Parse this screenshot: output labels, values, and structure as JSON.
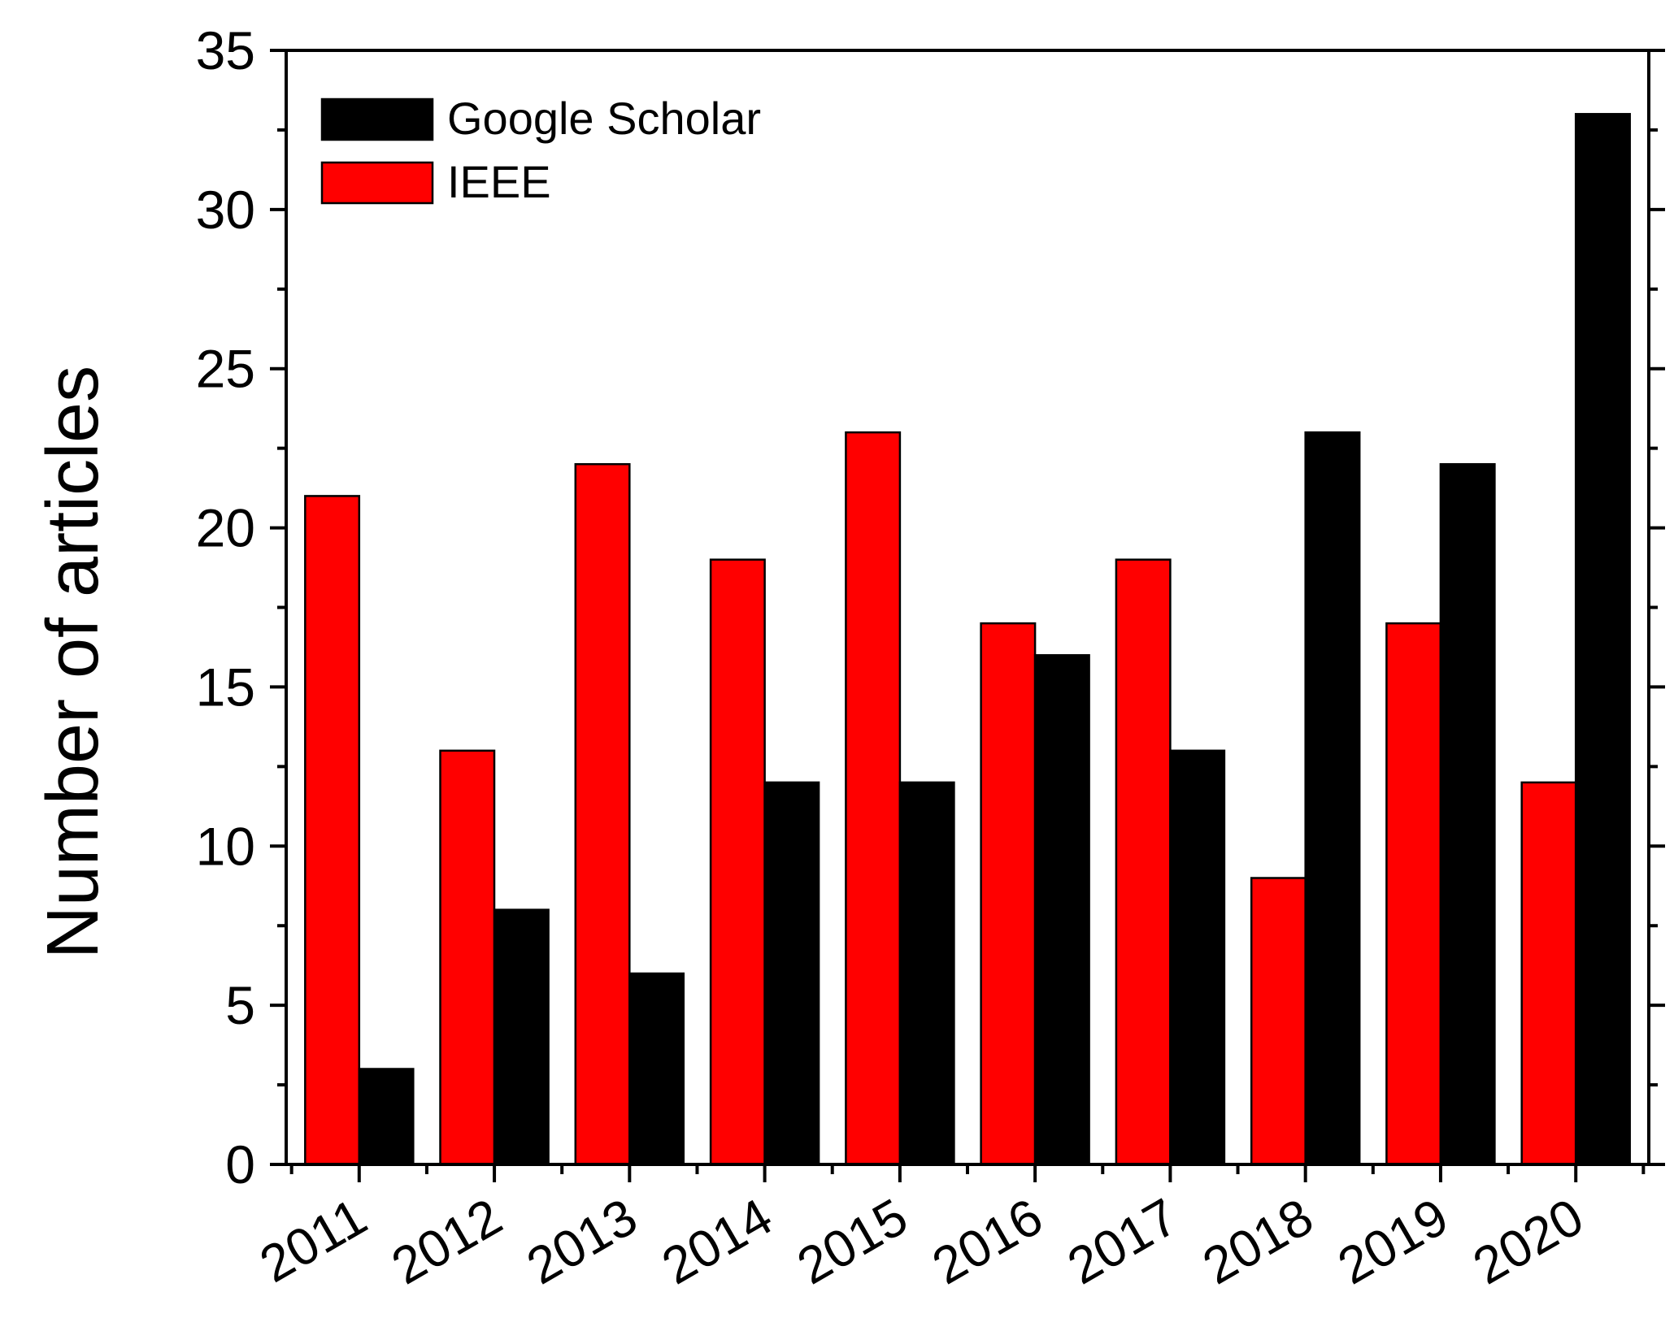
{
  "chart_data": {
    "type": "bar",
    "categories": [
      "2011",
      "2012",
      "2013",
      "2014",
      "2015",
      "2016",
      "2017",
      "2018",
      "2019",
      "2020"
    ],
    "series": [
      {
        "name": "IEEE",
        "color": "#ff0000",
        "values": [
          21,
          13,
          22,
          19,
          23,
          17,
          19,
          9,
          17,
          12
        ]
      },
      {
        "name": "Google Scholar",
        "color": "#000000",
        "values": [
          3,
          8,
          6,
          12,
          12,
          16,
          13,
          23,
          22,
          33
        ]
      }
    ],
    "legend_order": [
      "Google Scholar",
      "IEEE"
    ],
    "legend_position": "top-left",
    "title": "",
    "xlabel": "",
    "ylabel": "Number of articles",
    "ylim": [
      0,
      35
    ],
    "yticks": [
      0,
      5,
      10,
      15,
      20,
      25,
      30,
      35
    ],
    "grid": false
  }
}
